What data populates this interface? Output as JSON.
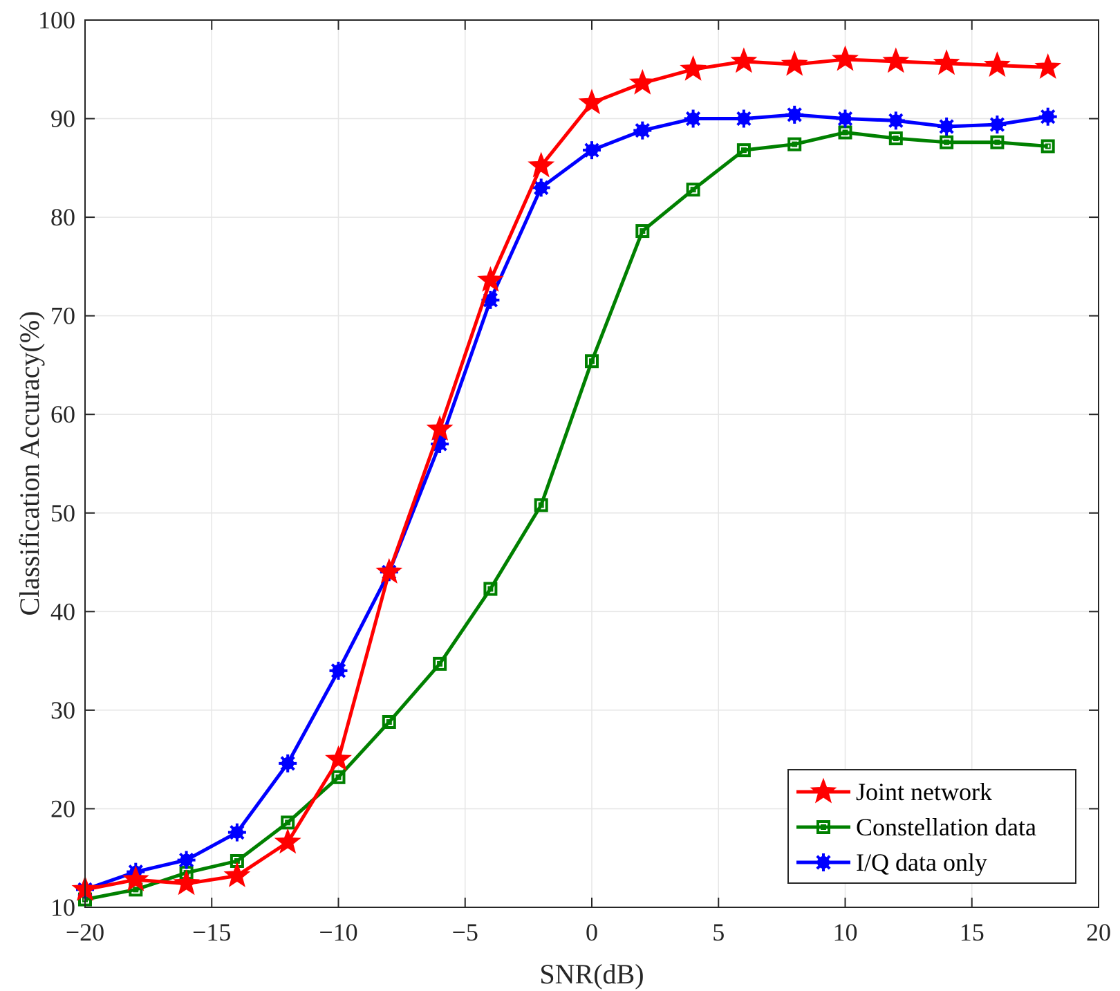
{
  "chart_data": {
    "type": "line",
    "title": "",
    "xlabel": "SNR(dB)",
    "ylabel": "Classification Accuracy(%)",
    "xlim": [
      -20,
      20
    ],
    "ylim": [
      10,
      100
    ],
    "xticks": [
      -20,
      -15,
      -10,
      -5,
      0,
      5,
      10,
      15,
      20
    ],
    "xtick_labels": [
      "−20",
      "−15",
      "−10",
      "−5",
      "0",
      "5",
      "10",
      "15",
      "20"
    ],
    "yticks": [
      10,
      20,
      30,
      40,
      50,
      60,
      70,
      80,
      90,
      100
    ],
    "ytick_labels": [
      "10",
      "20",
      "30",
      "40",
      "50",
      "60",
      "70",
      "80",
      "90",
      "100"
    ],
    "grid": true,
    "legend_position": "bottom-right",
    "x": [
      -20,
      -18,
      -16,
      -14,
      -12,
      -10,
      -8,
      -6,
      -4,
      -2,
      0,
      2,
      4,
      6,
      8,
      10,
      12,
      14,
      16,
      18
    ],
    "series": [
      {
        "name": "Joint network",
        "color": "#ff0000",
        "marker": "star",
        "values": [
          11.8,
          12.8,
          12.4,
          13.2,
          16.6,
          25.0,
          44.0,
          58.5,
          73.6,
          85.2,
          91.6,
          93.6,
          95.0,
          95.8,
          95.5,
          96.0,
          95.8,
          95.6,
          95.4,
          95.2
        ]
      },
      {
        "name": "Constellation data",
        "color": "#008000",
        "marker": "square",
        "values": [
          10.8,
          11.8,
          13.5,
          14.7,
          18.6,
          23.2,
          28.8,
          34.7,
          42.3,
          50.8,
          65.4,
          78.6,
          82.8,
          86.8,
          87.4,
          88.6,
          88.0,
          87.6,
          87.6,
          87.2
        ]
      },
      {
        "name": "I/Q data only",
        "color": "#0000ff",
        "marker": "asterisk",
        "values": [
          11.8,
          13.6,
          14.8,
          17.6,
          24.6,
          34.0,
          44.0,
          57.0,
          71.6,
          83.0,
          86.8,
          88.8,
          90.0,
          90.0,
          90.4,
          90.0,
          89.8,
          89.2,
          89.4,
          90.2
        ]
      }
    ]
  }
}
